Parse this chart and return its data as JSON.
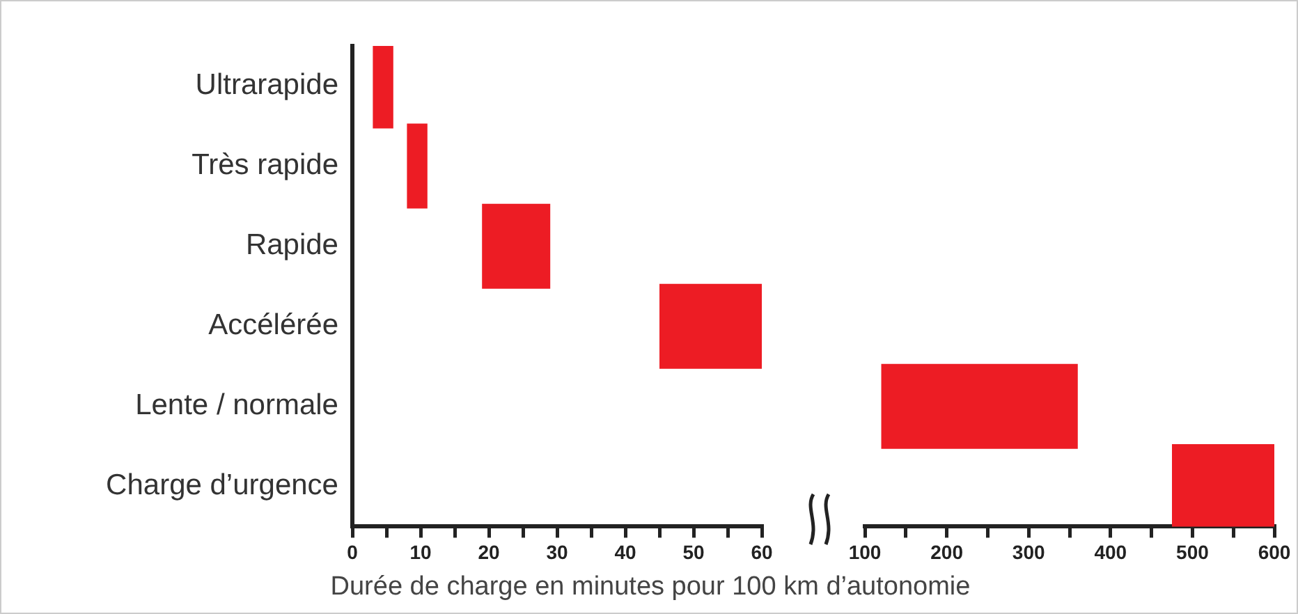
{
  "chart_data": [
    {
      "type": "bar",
      "orientation": "horizontal",
      "categories": [
        "Ultrarapide",
        "Très rapide",
        "Rapide",
        "Accélérée",
        "Lente / normale",
        "Charge d’urgence"
      ],
      "base": [
        3,
        8,
        19,
        45,
        null,
        null
      ],
      "values": [
        3,
        3,
        10,
        15,
        null,
        null
      ],
      "color": "#ed1c24",
      "xlim": [
        0,
        60
      ],
      "xticks": [
        0,
        {
          "value": 5,
          "label": null
        },
        10,
        {
          "value": 15,
          "label": null
        },
        20,
        {
          "value": 25,
          "label": null
        },
        30,
        {
          "value": 35,
          "label": null
        },
        40,
        {
          "value": 45,
          "label": null
        },
        50,
        {
          "value": 55,
          "label": null
        },
        60
      ],
      "grid": false,
      "legend": false
    },
    {
      "type": "bar",
      "orientation": "horizontal",
      "categories": [
        null,
        null,
        null,
        null,
        null,
        null
      ],
      "base": [
        null,
        null,
        null,
        null,
        120,
        475
      ],
      "values": [
        null,
        null,
        null,
        null,
        240,
        125
      ],
      "color": "#ed1c24",
      "xlim": [
        100,
        600
      ],
      "xticks": [
        100,
        {
          "value": 150,
          "label": null
        },
        200,
        {
          "value": 250,
          "label": null
        },
        300,
        {
          "value": 350,
          "label": null
        },
        400,
        {
          "value": 450,
          "label": null
        },
        500,
        {
          "value": 550,
          "label": null
        },
        600
      ],
      "xlabel": "Durée de charge en minutes pour 100 km d’autonomie",
      "grid": false,
      "legend": false,
      "tick_labels": "x"
    }
  ]
}
